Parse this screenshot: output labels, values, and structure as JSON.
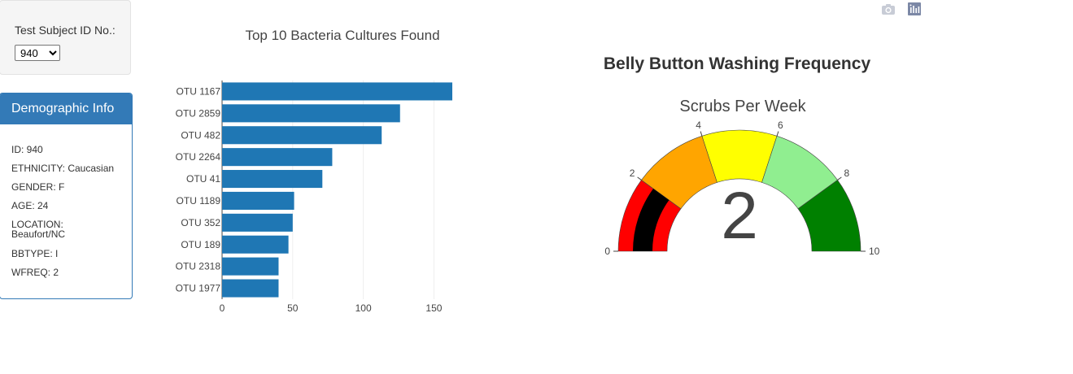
{
  "selector": {
    "label": "Test Subject ID No.:",
    "value": "940",
    "options": [
      "940"
    ]
  },
  "demographics": {
    "title": "Demographic Info",
    "items": [
      "ID: 940",
      "ETHNICITY: Caucasian",
      "GENDER: F",
      "AGE: 24",
      "LOCATION: Beaufort/NC",
      "BBTYPE: I",
      "WFREQ: 2"
    ]
  },
  "modebar": {
    "icons": [
      "camera-icon",
      "plotly-chart-icon"
    ]
  },
  "chart_data": [
    {
      "type": "bar",
      "orientation": "horizontal",
      "title": "Top 10 Bacteria Cultures Found",
      "categories": [
        "OTU 1167",
        "OTU 2859",
        "OTU 482",
        "OTU 2264",
        "OTU 41",
        "OTU 1189",
        "OTU 352",
        "OTU 189",
        "OTU 2318",
        "OTU 1977"
      ],
      "values": [
        163,
        126,
        113,
        78,
        71,
        51,
        50,
        47,
        40,
        40
      ],
      "xlim": [
        0,
        163
      ],
      "xticks": [
        0,
        50,
        100,
        150
      ],
      "grid": true,
      "color": "#1f77b4"
    },
    {
      "type": "gauge",
      "title": "Belly Button Washing Frequency",
      "subtitle": "Scrubs Per Week",
      "value": 2,
      "range": [
        0,
        10
      ],
      "ticks": [
        0,
        2,
        4,
        6,
        8,
        10
      ],
      "steps": [
        {
          "range": [
            0,
            2
          ],
          "color": "#ff0000"
        },
        {
          "range": [
            2,
            4
          ],
          "color": "#ffa500"
        },
        {
          "range": [
            4,
            6
          ],
          "color": "#ffff00"
        },
        {
          "range": [
            6,
            8
          ],
          "color": "#90ee90"
        },
        {
          "range": [
            8,
            10
          ],
          "color": "#008000"
        }
      ],
      "bar_color": "#000000"
    }
  ]
}
